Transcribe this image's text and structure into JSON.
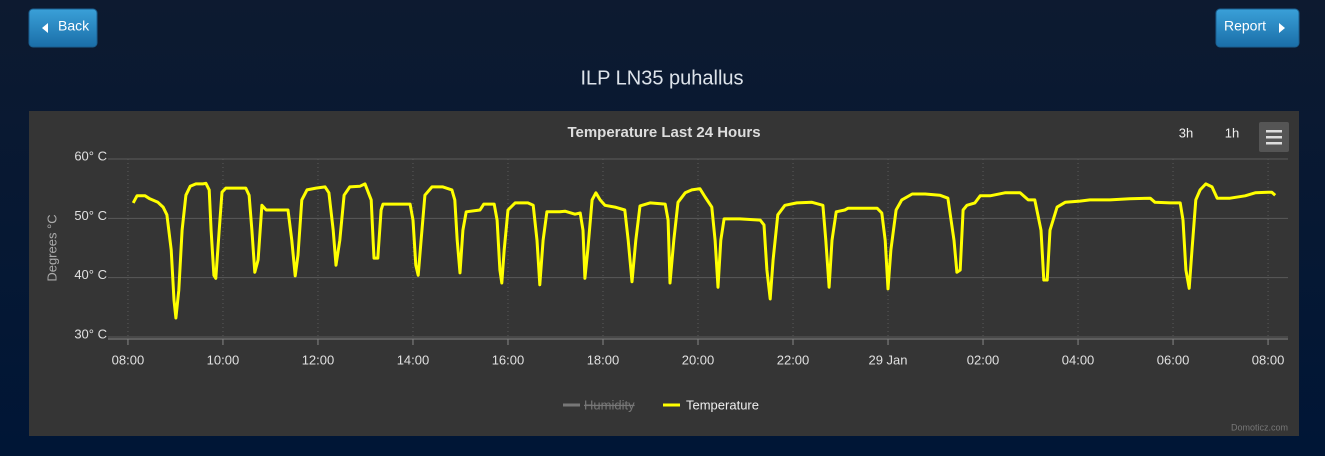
{
  "buttons": {
    "back": "Back",
    "report": "Report"
  },
  "page_title": "ILP LN35 puhallus",
  "zoom_buttons": [
    "3h",
    "1h"
  ],
  "credit": "Domoticz.com",
  "chart_data": {
    "type": "line",
    "title": "Temperature Last 24 Hours",
    "y_label": "Degrees °C",
    "xlim": [
      7.58,
      32.42
    ],
    "xticks": [
      {
        "value": 8,
        "label": "08:00"
      },
      {
        "value": 10,
        "label": "10:00"
      },
      {
        "value": 12,
        "label": "12:00"
      },
      {
        "value": 14,
        "label": "14:00"
      },
      {
        "value": 16,
        "label": "16:00"
      },
      {
        "value": 18,
        "label": "18:00"
      },
      {
        "value": 20,
        "label": "20:00"
      },
      {
        "value": 22,
        "label": "22:00"
      },
      {
        "value": 24,
        "label": "29 Jan"
      },
      {
        "value": 26,
        "label": "02:00"
      },
      {
        "value": 28,
        "label": "04:00"
      },
      {
        "value": 30,
        "label": "06:00"
      },
      {
        "value": 32,
        "label": "08:00"
      }
    ],
    "ylim": [
      30,
      60
    ],
    "yticks": [
      {
        "value": 30,
        "label": "30° C"
      },
      {
        "value": 40,
        "label": "40° C"
      },
      {
        "value": 50,
        "label": "50° C"
      },
      {
        "value": 60,
        "label": "60° C"
      }
    ],
    "grid": true,
    "hidden_series": [
      {
        "name": "Humidity",
        "color": "#777777"
      }
    ],
    "x": [
      8.11,
      8.19,
      8.36,
      8.46,
      8.63,
      8.74,
      8.82,
      8.91,
      8.97,
      9.01,
      9.07,
      9.14,
      9.22,
      9.31,
      9.43,
      9.58,
      9.64,
      9.71,
      9.75,
      9.81,
      9.85,
      9.92,
      9.98,
      10.06,
      10.27,
      10.48,
      10.55,
      10.61,
      10.67,
      10.74,
      10.82,
      10.91,
      11.12,
      11.37,
      11.45,
      11.52,
      11.58,
      11.66,
      11.77,
      11.96,
      12.15,
      12.23,
      12.32,
      12.38,
      12.46,
      12.55,
      12.67,
      12.88,
      12.99,
      13.12,
      13.16,
      13.18,
      13.26,
      13.33,
      13.37,
      13.68,
      13.94,
      14.0,
      14.06,
      14.11,
      14.17,
      14.25,
      14.4,
      14.63,
      14.82,
      14.88,
      14.93,
      14.99,
      15.05,
      15.12,
      15.41,
      15.49,
      15.71,
      15.77,
      15.83,
      15.87,
      15.92,
      16.0,
      16.15,
      16.42,
      16.53,
      16.61,
      16.67,
      16.74,
      16.82,
      17.09,
      17.2,
      17.41,
      17.52,
      17.58,
      17.62,
      17.68,
      17.77,
      17.85,
      17.94,
      18.04,
      18.25,
      18.46,
      18.53,
      18.61,
      18.69,
      18.78,
      18.99,
      19.31,
      19.37,
      19.41,
      19.49,
      19.58,
      19.73,
      19.87,
      20.04,
      20.15,
      20.29,
      20.36,
      20.42,
      20.48,
      20.55,
      20.88,
      21.31,
      21.39,
      21.45,
      21.52,
      21.58,
      21.68,
      21.83,
      22.08,
      22.4,
      22.63,
      22.69,
      22.76,
      22.82,
      22.91,
      23.09,
      23.16,
      23.41,
      23.77,
      23.87,
      23.94,
      24.0,
      24.06,
      24.17,
      24.29,
      24.51,
      24.78,
      25.09,
      25.26,
      25.39,
      25.45,
      25.52,
      25.58,
      25.66,
      25.83,
      25.94,
      26.15,
      26.46,
      26.78,
      26.95,
      27.09,
      27.22,
      27.28,
      27.35,
      27.41,
      27.56,
      27.73,
      28.04,
      28.25,
      28.67,
      29.09,
      29.52,
      29.62,
      29.94,
      30.15,
      30.21,
      30.27,
      30.34,
      30.4,
      30.48,
      30.57,
      30.69,
      30.82,
      30.93,
      31.2,
      31.52,
      31.73,
      32.0,
      32.08,
      32.15
    ],
    "series": [
      {
        "name": "Temperature",
        "color": "#ffff00",
        "values": [
          52.6,
          53.8,
          53.8,
          53.3,
          52.7,
          51.9,
          50.6,
          44.7,
          36.2,
          33.2,
          37.9,
          48,
          53.9,
          55.4,
          55.8,
          55.8,
          55.9,
          54.8,
          48,
          40.4,
          39.9,
          48,
          54.4,
          55.1,
          55.1,
          55.1,
          53.9,
          48,
          40.9,
          43,
          52.2,
          51.4,
          51.4,
          51.4,
          46.3,
          40.3,
          43.8,
          53.1,
          54.8,
          55.1,
          55.3,
          54.3,
          48,
          42.1,
          46.3,
          53.9,
          55.3,
          55.4,
          55.8,
          53.1,
          46.3,
          43.3,
          43.3,
          51.4,
          52.4,
          52.4,
          52.4,
          49.7,
          42.1,
          40.4,
          46.3,
          53.9,
          55.3,
          55.3,
          54.8,
          53.1,
          46.3,
          40.8,
          48,
          51.1,
          51.4,
          52.4,
          52.4,
          49.7,
          41.3,
          39.1,
          44.7,
          51.4,
          52.6,
          52.6,
          52.2,
          46.3,
          38.8,
          46.3,
          51.1,
          51.1,
          51.2,
          50.7,
          50.9,
          48,
          39.9,
          44.7,
          53.1,
          54.3,
          53.1,
          52.2,
          51.9,
          51.4,
          46.3,
          39.3,
          46.3,
          52.1,
          52.6,
          52.4,
          49.7,
          39.1,
          46.3,
          52.7,
          54.3,
          54.8,
          55,
          53.6,
          51.9,
          46.3,
          38.4,
          46.3,
          49.9,
          49.9,
          49.7,
          48.9,
          41.3,
          36.4,
          43,
          50.6,
          52.2,
          52.6,
          52.7,
          52.2,
          46.3,
          38.4,
          46.3,
          51.1,
          51.4,
          51.7,
          51.7,
          51.7,
          50.9,
          46.3,
          38.1,
          44.7,
          51.4,
          53.1,
          54.1,
          54.1,
          53.9,
          53.4,
          46.3,
          40.9,
          41.3,
          51.4,
          52.2,
          52.6,
          53.8,
          53.8,
          54.3,
          54.3,
          53.1,
          53.1,
          48,
          39.6,
          39.6,
          48,
          51.9,
          52.7,
          52.9,
          53.1,
          53.1,
          53.3,
          53.4,
          52.7,
          52.6,
          52.6,
          49.7,
          41.3,
          38.2,
          44.7,
          53.1,
          54.8,
          55.8,
          55.3,
          53.4,
          53.4,
          53.8,
          54.3,
          54.4,
          54.4,
          53.9
        ]
      }
    ]
  }
}
